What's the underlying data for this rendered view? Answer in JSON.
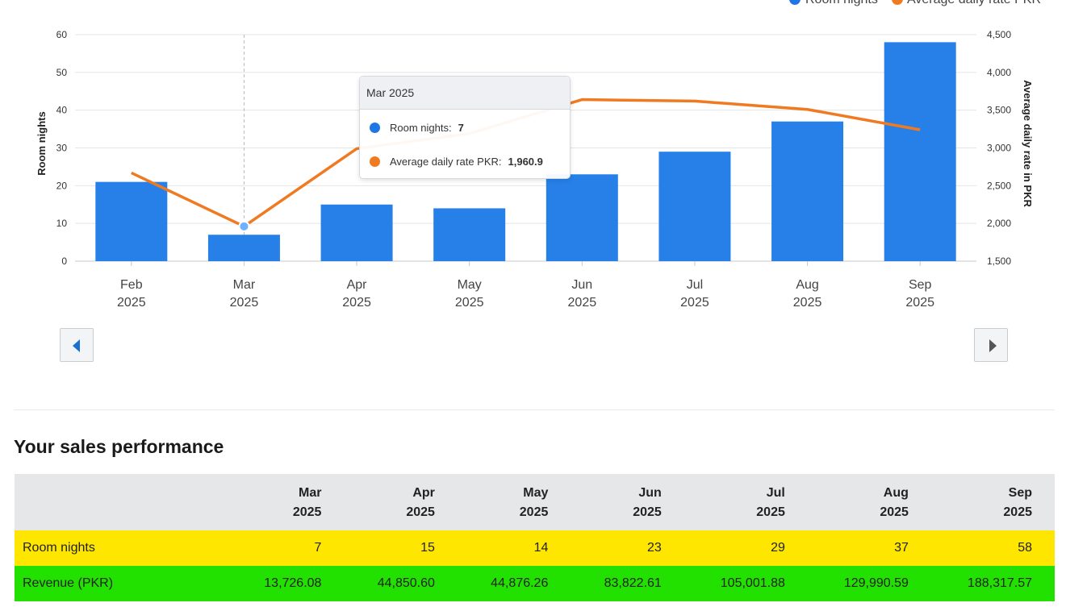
{
  "chart": {
    "legend": [
      {
        "label": "Room nights",
        "color": "#1f77e6"
      },
      {
        "label": "Average daily rate PKR",
        "color": "#f07a22"
      }
    ],
    "left_axis_label": "Room nights",
    "right_axis_label": "Average daily rate in PKR",
    "left_ticks": [
      "0",
      "10",
      "20",
      "30",
      "40",
      "50",
      "60"
    ],
    "right_ticks": [
      "1,500",
      "2,000",
      "2,500",
      "3,000",
      "3,500",
      "4,000",
      "4,500"
    ],
    "months": [
      {
        "month": "Feb",
        "year": "2025"
      },
      {
        "month": "Mar",
        "year": "2025"
      },
      {
        "month": "Apr",
        "year": "2025"
      },
      {
        "month": "May",
        "year": "2025"
      },
      {
        "month": "Jun",
        "year": "2025"
      },
      {
        "month": "Jul",
        "year": "2025"
      },
      {
        "month": "Aug",
        "year": "2025"
      },
      {
        "month": "Sep",
        "year": "2025"
      }
    ]
  },
  "chart_data": {
    "type": "bar",
    "categories": [
      "Feb 2025",
      "Mar 2025",
      "Apr 2025",
      "May 2025",
      "Jun 2025",
      "Jul 2025",
      "Aug 2025",
      "Sep 2025"
    ],
    "series": [
      {
        "name": "Room nights",
        "type": "bar",
        "axis": "left",
        "values": [
          21,
          7,
          15,
          14,
          23,
          29,
          37,
          58
        ]
      },
      {
        "name": "Average daily rate PKR",
        "type": "line",
        "axis": "right",
        "values": [
          2670,
          1960.9,
          2990,
          3190,
          3640,
          3620,
          3510,
          3240
        ]
      }
    ],
    "ylim_left": [
      0,
      60
    ],
    "ylim_right": [
      1500,
      4500
    ],
    "grid": true,
    "legend_position": "top-right",
    "highlighted_index": 1
  },
  "tooltip": {
    "title": "Mar 2025",
    "rows": [
      {
        "label": "Room nights:",
        "value": "7",
        "color": "#1f77e6"
      },
      {
        "label": "Average daily rate PKR:",
        "value": "1,960.9",
        "color": "#f07a22"
      }
    ]
  },
  "sales": {
    "title": "Your sales performance",
    "header": [
      {
        "month": "Mar",
        "year": "2025"
      },
      {
        "month": "Apr",
        "year": "2025"
      },
      {
        "month": "May",
        "year": "2025"
      },
      {
        "month": "Jun",
        "year": "2025"
      },
      {
        "month": "Jul",
        "year": "2025"
      },
      {
        "month": "Aug",
        "year": "2025"
      },
      {
        "month": "Sep",
        "year": "2025"
      }
    ],
    "rows": [
      {
        "label": "Room nights",
        "values": [
          "7",
          "15",
          "14",
          "23",
          "29",
          "37",
          "58"
        ]
      },
      {
        "label": "Revenue (PKR)",
        "values": [
          "13,726.08",
          "44,850.60",
          "44,876.26",
          "83,822.61",
          "105,001.88",
          "129,990.59",
          "188,317.57"
        ]
      }
    ]
  }
}
